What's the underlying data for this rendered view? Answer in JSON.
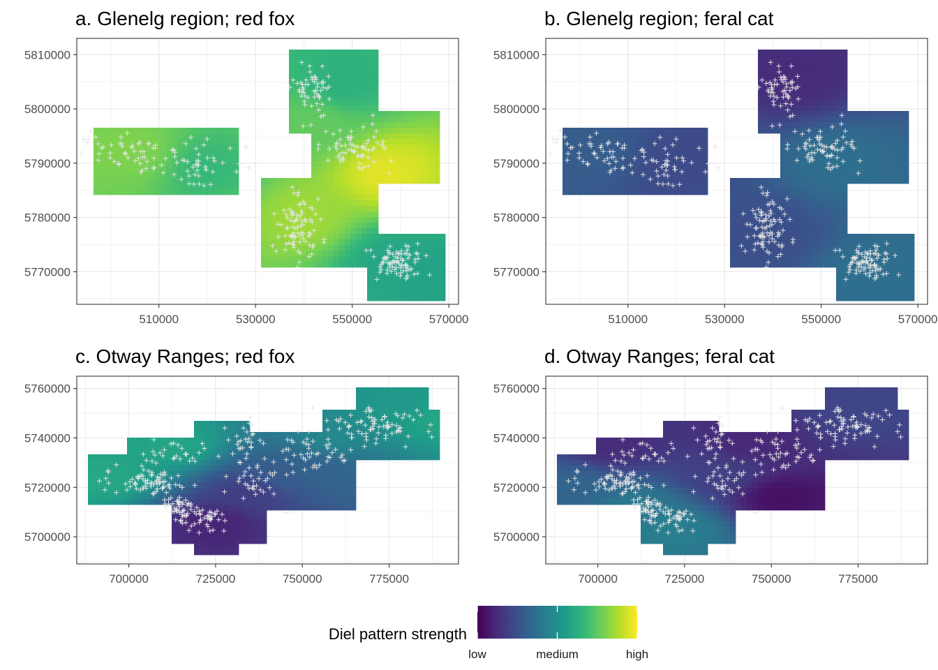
{
  "chart_data": [
    {
      "type": "heatmap",
      "title": "a.  Glenelg region; red fox",
      "xlim": [
        493000,
        572000
      ],
      "ylim": [
        5764000,
        5813000
      ],
      "x_ticks": [
        510000,
        530000,
        550000,
        570000
      ],
      "x_tick_labels": [
        "510000",
        "530000",
        "550000",
        "570000"
      ],
      "y_ticks": [
        5770000,
        5780000,
        5790000,
        5800000,
        5810000
      ],
      "y_tick_labels": [
        "5770000",
        "5780000",
        "5790000",
        "5800000",
        "5810000"
      ],
      "grid": true,
      "base_level": 0.72,
      "surface": [
        [
          548000,
          5805000,
          0.62
        ],
        [
          557000,
          5788000,
          1.0
        ],
        [
          540000,
          5780000,
          0.88
        ],
        [
          505000,
          5792000,
          0.82
        ],
        [
          520000,
          5789000,
          0.66
        ],
        [
          559000,
          5772000,
          0.56
        ],
        [
          566000,
          5770000,
          0.55
        ],
        [
          542000,
          5797000,
          0.76
        ]
      ],
      "regions": [
        {
          "xmin": 496000,
          "xmax": 527000,
          "ymin": 5784000,
          "ymax": 5797000
        },
        {
          "xmin": 537000,
          "xmax": 555000,
          "ymin": 5796000,
          "ymax": 5811000
        },
        {
          "xmin": 541000,
          "xmax": 568000,
          "ymin": 5786000,
          "ymax": 5800000
        },
        {
          "xmin": 531000,
          "xmax": 555000,
          "ymin": 5771000,
          "ymax": 5787000
        },
        {
          "xmin": 553000,
          "xmax": 569000,
          "ymin": 5765000,
          "ymax": 5777000
        }
      ],
      "sites": [
        {
          "cx": 504000,
          "cy": 5792000,
          "sx": 5500,
          "sy": 2000,
          "n": 55
        },
        {
          "cx": 518000,
          "cy": 5790000,
          "sx": 4500,
          "sy": 2000,
          "n": 45
        },
        {
          "cx": 542000,
          "cy": 5804000,
          "sx": 2200,
          "sy": 2800,
          "n": 55
        },
        {
          "cx": 551000,
          "cy": 5793000,
          "sx": 3500,
          "sy": 2000,
          "n": 70
        },
        {
          "cx": 539000,
          "cy": 5778000,
          "sx": 2500,
          "sy": 3000,
          "n": 85
        },
        {
          "cx": 559000,
          "cy": 5772000,
          "sx": 2500,
          "sy": 1800,
          "n": 85
        }
      ]
    },
    {
      "type": "heatmap",
      "title": "b.  Glenelg region; feral cat",
      "xlim": [
        493000,
        572000
      ],
      "ylim": [
        5764000,
        5813000
      ],
      "x_ticks": [
        510000,
        530000,
        550000,
        570000
      ],
      "x_tick_labels": [
        "510000",
        "530000",
        "550000",
        "570000"
      ],
      "y_ticks": [
        5770000,
        5780000,
        5790000,
        5800000,
        5810000
      ],
      "y_tick_labels": [
        "5770000",
        "5780000",
        "5790000",
        "5800000",
        "5810000"
      ],
      "grid": true,
      "base_level": 0.26,
      "surface": [
        [
          545000,
          5806000,
          0.1
        ],
        [
          553000,
          5790000,
          0.38
        ],
        [
          560000,
          5770000,
          0.38
        ],
        [
          540000,
          5777000,
          0.24
        ],
        [
          503000,
          5792000,
          0.3
        ],
        [
          520000,
          5790000,
          0.22
        ]
      ],
      "regions": [
        {
          "xmin": 496000,
          "xmax": 527000,
          "ymin": 5784000,
          "ymax": 5797000
        },
        {
          "xmin": 537000,
          "xmax": 555000,
          "ymin": 5796000,
          "ymax": 5811000
        },
        {
          "xmin": 541000,
          "xmax": 568000,
          "ymin": 5786000,
          "ymax": 5800000
        },
        {
          "xmin": 531000,
          "xmax": 555000,
          "ymin": 5771000,
          "ymax": 5787000
        },
        {
          "xmin": 553000,
          "xmax": 569000,
          "ymin": 5765000,
          "ymax": 5777000
        }
      ],
      "sites": [
        {
          "cx": 504000,
          "cy": 5792000,
          "sx": 5500,
          "sy": 2000,
          "n": 55
        },
        {
          "cx": 518000,
          "cy": 5790000,
          "sx": 4500,
          "sy": 2000,
          "n": 45
        },
        {
          "cx": 542000,
          "cy": 5804000,
          "sx": 2200,
          "sy": 2800,
          "n": 55
        },
        {
          "cx": 551000,
          "cy": 5793000,
          "sx": 3500,
          "sy": 2000,
          "n": 70
        },
        {
          "cx": 539000,
          "cy": 5778000,
          "sx": 2500,
          "sy": 3000,
          "n": 85
        },
        {
          "cx": 559000,
          "cy": 5772000,
          "sx": 2500,
          "sy": 1800,
          "n": 85
        }
      ]
    },
    {
      "type": "heatmap",
      "title": "c.  Otway Ranges; red fox",
      "xlim": [
        685000,
        795000
      ],
      "ylim": [
        5689000,
        5765000
      ],
      "x_ticks": [
        700000,
        725000,
        750000,
        775000
      ],
      "x_tick_labels": [
        "700000",
        "725000",
        "750000",
        "775000"
      ],
      "y_ticks": [
        5700000,
        5720000,
        5740000,
        5760000
      ],
      "y_tick_labels": [
        "5700000",
        "5720000",
        "5740000",
        "5760000"
      ],
      "grid": true,
      "base_level": 0.42,
      "surface": [
        [
          692000,
          5724000,
          0.63
        ],
        [
          712000,
          5737000,
          0.62
        ],
        [
          725000,
          5705000,
          0.04
        ],
        [
          735000,
          5718000,
          0.14
        ],
        [
          745000,
          5725000,
          0.27
        ],
        [
          760000,
          5740000,
          0.48
        ],
        [
          778000,
          5752000,
          0.55
        ],
        [
          789000,
          5748000,
          0.62
        ],
        [
          755000,
          5728000,
          0.3
        ]
      ],
      "regions": [
        {
          "xmin": 688000,
          "xmax": 712000,
          "ymin": 5713000,
          "ymax": 5733000
        },
        {
          "xmin": 700000,
          "xmax": 730000,
          "ymin": 5712000,
          "ymax": 5740000
        },
        {
          "xmin": 718000,
          "xmax": 735000,
          "ymin": 5734000,
          "ymax": 5747000
        },
        {
          "xmin": 712000,
          "xmax": 740000,
          "ymin": 5697000,
          "ymax": 5714000
        },
        {
          "xmin": 718000,
          "xmax": 732000,
          "ymin": 5692000,
          "ymax": 5700000
        },
        {
          "xmin": 728000,
          "xmax": 765000,
          "ymin": 5710000,
          "ymax": 5742000
        },
        {
          "xmin": 755000,
          "xmax": 790000,
          "ymin": 5730000,
          "ymax": 5752000
        },
        {
          "xmin": 765000,
          "xmax": 786000,
          "ymin": 5752000,
          "ymax": 5760000
        }
      ],
      "sites": [
        {
          "cx": 708000,
          "cy": 5722000,
          "sx": 4000,
          "sy": 2500,
          "n": 60
        },
        {
          "cx": 715000,
          "cy": 5712000,
          "sx": 2500,
          "sy": 3500,
          "n": 50
        },
        {
          "cx": 722000,
          "cy": 5706000,
          "sx": 3000,
          "sy": 3000,
          "n": 35
        },
        {
          "cx": 712000,
          "cy": 5732000,
          "sx": 6000,
          "sy": 4000,
          "n": 30
        },
        {
          "cx": 738000,
          "cy": 5724000,
          "sx": 5000,
          "sy": 5000,
          "n": 40
        },
        {
          "cx": 752000,
          "cy": 5734000,
          "sx": 6000,
          "sy": 4000,
          "n": 45
        },
        {
          "cx": 770000,
          "cy": 5745000,
          "sx": 7000,
          "sy": 3500,
          "n": 80
        },
        {
          "cx": 733000,
          "cy": 5740000,
          "sx": 2500,
          "sy": 4000,
          "n": 25
        },
        {
          "cx": 696000,
          "cy": 5723000,
          "sx": 3000,
          "sy": 2500,
          "n": 12
        }
      ]
    },
    {
      "type": "heatmap",
      "title": "d.  Otway Ranges; feral cat",
      "xlim": [
        685000,
        795000
      ],
      "ylim": [
        5689000,
        5765000
      ],
      "x_ticks": [
        700000,
        725000,
        750000,
        775000
      ],
      "x_tick_labels": [
        "700000",
        "725000",
        "750000",
        "775000"
      ],
      "y_ticks": [
        5700000,
        5720000,
        5740000,
        5760000
      ],
      "y_tick_labels": [
        "5700000",
        "5720000",
        "5740000",
        "5760000"
      ],
      "grid": true,
      "base_level": 0.16,
      "surface": [
        [
          692000,
          5720000,
          0.35
        ],
        [
          712000,
          5712000,
          0.45
        ],
        [
          722000,
          5703000,
          0.48
        ],
        [
          752000,
          5716000,
          0.02
        ],
        [
          745000,
          5738000,
          0.1
        ],
        [
          775000,
          5750000,
          0.22
        ],
        [
          735000,
          5725000,
          0.2
        ],
        [
          705000,
          5737000,
          0.12
        ]
      ],
      "regions": [
        {
          "xmin": 688000,
          "xmax": 712000,
          "ymin": 5713000,
          "ymax": 5733000
        },
        {
          "xmin": 700000,
          "xmax": 730000,
          "ymin": 5712000,
          "ymax": 5740000
        },
        {
          "xmin": 718000,
          "xmax": 735000,
          "ymin": 5734000,
          "ymax": 5747000
        },
        {
          "xmin": 712000,
          "xmax": 740000,
          "ymin": 5697000,
          "ymax": 5714000
        },
        {
          "xmin": 718000,
          "xmax": 732000,
          "ymin": 5692000,
          "ymax": 5700000
        },
        {
          "xmin": 728000,
          "xmax": 765000,
          "ymin": 5710000,
          "ymax": 5742000
        },
        {
          "xmin": 755000,
          "xmax": 790000,
          "ymin": 5730000,
          "ymax": 5752000
        },
        {
          "xmin": 765000,
          "xmax": 786000,
          "ymin": 5752000,
          "ymax": 5760000
        }
      ],
      "sites": [
        {
          "cx": 708000,
          "cy": 5722000,
          "sx": 4000,
          "sy": 2500,
          "n": 60
        },
        {
          "cx": 715000,
          "cy": 5712000,
          "sx": 2500,
          "sy": 3500,
          "n": 50
        },
        {
          "cx": 722000,
          "cy": 5706000,
          "sx": 3000,
          "sy": 3000,
          "n": 35
        },
        {
          "cx": 712000,
          "cy": 5732000,
          "sx": 6000,
          "sy": 4000,
          "n": 30
        },
        {
          "cx": 738000,
          "cy": 5724000,
          "sx": 5000,
          "sy": 5000,
          "n": 40
        },
        {
          "cx": 752000,
          "cy": 5734000,
          "sx": 6000,
          "sy": 4000,
          "n": 45
        },
        {
          "cx": 770000,
          "cy": 5745000,
          "sx": 7000,
          "sy": 3500,
          "n": 80
        },
        {
          "cx": 733000,
          "cy": 5740000,
          "sx": 2500,
          "sy": 4000,
          "n": 25
        },
        {
          "cx": 696000,
          "cy": 5723000,
          "sx": 3000,
          "sy": 2500,
          "n": 12
        }
      ]
    }
  ],
  "legend": {
    "title": "Diel pattern strength",
    "labels": [
      "low",
      "medium",
      "high"
    ],
    "colormap": [
      "#440154",
      "#482878",
      "#3e4989",
      "#31688e",
      "#26828e",
      "#1f9e89",
      "#35b779",
      "#6ece58",
      "#b5de2b",
      "#fde725"
    ],
    "position": "bottom"
  },
  "colors": {
    "site_marker": "#e6e6e6",
    "gridline": "#ebebeb",
    "panel_border": "#333333"
  }
}
